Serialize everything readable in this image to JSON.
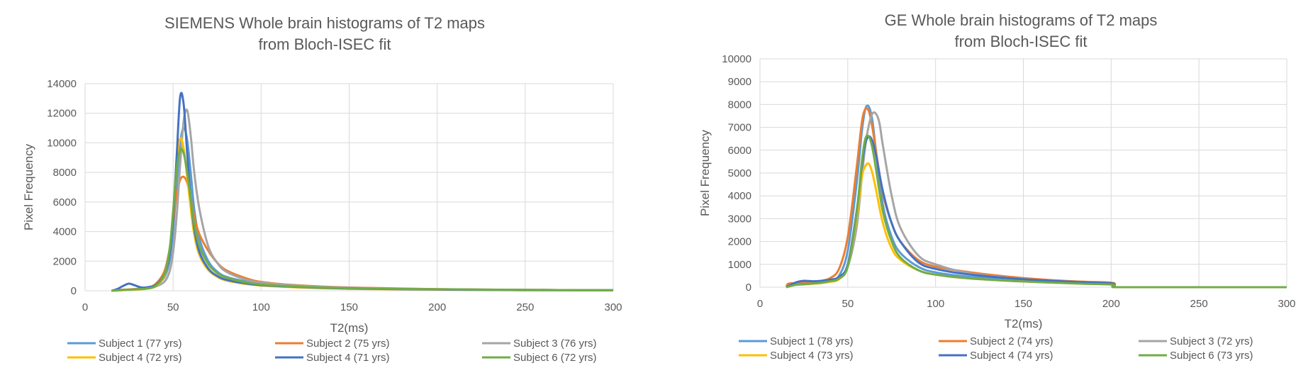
{
  "chart_data": [
    {
      "type": "line",
      "title": [
        "SIEMENS  Whole brain histograms of T2 maps",
        "from Bloch-ISEC  fit"
      ],
      "xlabel": "T2(ms)",
      "ylabel": "Pixel Frequency",
      "xlim": [
        0,
        300
      ],
      "ylim": [
        0,
        14000
      ],
      "xticks": [
        0,
        50,
        100,
        150,
        200,
        250,
        300
      ],
      "yticks": [
        0,
        2000,
        4000,
        6000,
        8000,
        10000,
        12000,
        14000
      ],
      "grid": true,
      "legend_position": "bottom",
      "series": [
        {
          "name": "Subject 1 (77 yrs)",
          "color": "#5B9BD5",
          "x": [
            15,
            20,
            25,
            30,
            35,
            40,
            45,
            48,
            50,
            52,
            54,
            56,
            58,
            60,
            62,
            65,
            70,
            75,
            80,
            90,
            100,
            120,
            150,
            200,
            250,
            300
          ],
          "y": [
            0,
            50,
            80,
            120,
            180,
            350,
            900,
            2000,
            4000,
            7200,
            10000,
            11000,
            10200,
            8000,
            5500,
            3500,
            2000,
            1300,
            950,
            650,
            450,
            300,
            180,
            90,
            50,
            30
          ]
        },
        {
          "name": "Subject 2 (75 yrs)",
          "color": "#ED7D31",
          "x": [
            15,
            20,
            25,
            30,
            35,
            40,
            45,
            48,
            50,
            52,
            54,
            56,
            58,
            60,
            62,
            65,
            70,
            75,
            80,
            90,
            100,
            120,
            150,
            200,
            250,
            300
          ],
          "y": [
            0,
            60,
            90,
            130,
            200,
            450,
            1300,
            2800,
            4700,
            6500,
            7500,
            7700,
            7300,
            6300,
            5000,
            3800,
            2700,
            1900,
            1400,
            900,
            600,
            380,
            220,
            110,
            60,
            40
          ]
        },
        {
          "name": "Subject 3 (76 yrs)",
          "color": "#A5A5A5",
          "x": [
            15,
            20,
            25,
            30,
            35,
            40,
            45,
            48,
            50,
            52,
            54,
            56,
            58,
            60,
            62,
            65,
            70,
            75,
            80,
            90,
            100,
            120,
            150,
            200,
            250,
            300
          ],
          "y": [
            0,
            40,
            70,
            100,
            150,
            280,
            600,
            1300,
            2600,
            5000,
            8500,
            11500,
            12200,
            10500,
            8000,
            5500,
            3000,
            1900,
            1300,
            800,
            550,
            350,
            200,
            100,
            60,
            40
          ]
        },
        {
          "name": "Subject 4 (72 yrs)",
          "color": "#FFC000",
          "x": [
            15,
            20,
            25,
            30,
            35,
            40,
            45,
            48,
            50,
            52,
            54,
            56,
            58,
            60,
            62,
            65,
            70,
            75,
            80,
            90,
            100,
            120,
            150,
            200,
            250,
            300
          ],
          "y": [
            0,
            30,
            60,
            90,
            140,
            300,
            1000,
            2600,
            5200,
            8700,
            10300,
            9600,
            7700,
            5600,
            3800,
            2400,
            1400,
            950,
            700,
            480,
            350,
            230,
            130,
            70,
            40,
            25
          ]
        },
        {
          "name": "Subject 4 (71 yrs)",
          "color": "#4472C4",
          "x": [
            15,
            18,
            22,
            25,
            28,
            32,
            36,
            40,
            45,
            48,
            50,
            52,
            54,
            56,
            58,
            60,
            62,
            65,
            70,
            75,
            80,
            90,
            100,
            120,
            150,
            200,
            250,
            300
          ],
          "y": [
            0,
            100,
            350,
            480,
            380,
            220,
            250,
            380,
            1100,
            2500,
            5000,
            9000,
            13100,
            12600,
            9300,
            6300,
            4200,
            2600,
            1500,
            1000,
            750,
            520,
            380,
            260,
            150,
            80,
            45,
            30
          ]
        },
        {
          "name": "Subject 6 (72 yrs)",
          "color": "#70AD47",
          "x": [
            15,
            20,
            25,
            30,
            35,
            40,
            45,
            48,
            50,
            52,
            54,
            56,
            58,
            60,
            62,
            65,
            70,
            75,
            80,
            90,
            100,
            120,
            150,
            200,
            250,
            300
          ],
          "y": [
            0,
            40,
            70,
            100,
            150,
            320,
            1100,
            2800,
            5400,
            8200,
            9500,
            9300,
            8000,
            6200,
            4500,
            3000,
            1800,
            1200,
            900,
            600,
            420,
            280,
            170,
            100,
            60,
            40
          ]
        }
      ]
    },
    {
      "type": "line",
      "title": [
        "GE Whole brain histograms of T2 maps",
        "from Bloch-ISEC  fit"
      ],
      "xlabel": "T2(ms)",
      "ylabel": "Pixel Frequency",
      "xlim": [
        0,
        300
      ],
      "ylim": [
        0,
        10000
      ],
      "xticks": [
        0,
        50,
        100,
        150,
        200,
        250,
        300
      ],
      "yticks": [
        0,
        1000,
        2000,
        3000,
        4000,
        5000,
        6000,
        7000,
        8000,
        9000,
        10000
      ],
      "grid": true,
      "legend_position": "bottom",
      "series": [
        {
          "name": "Subject 1 (78 yrs)",
          "color": "#5B9BD5",
          "x": [
            15,
            20,
            25,
            30,
            35,
            40,
            45,
            50,
            55,
            58,
            60,
            62,
            64,
            66,
            70,
            75,
            80,
            90,
            100,
            120,
            150,
            180,
            200,
            202,
            205,
            250,
            300
          ],
          "y": [
            0,
            150,
            200,
            200,
            250,
            300,
            500,
            1600,
            4500,
            6800,
            7800,
            7900,
            7300,
            6000,
            3600,
            2200,
            1500,
            900,
            650,
            450,
            300,
            200,
            150,
            50,
            0,
            0,
            0
          ]
        },
        {
          "name": "Subject 2 (74 yrs)",
          "color": "#ED7D31",
          "x": [
            15,
            16,
            20,
            25,
            30,
            35,
            40,
            45,
            50,
            55,
            58,
            60,
            62,
            64,
            66,
            70,
            75,
            80,
            90,
            100,
            120,
            150,
            180,
            200,
            202,
            205,
            250,
            300
          ],
          "y": [
            0,
            150,
            180,
            200,
            220,
            280,
            400,
            800,
            2200,
            5200,
            7200,
            7800,
            7700,
            7000,
            6000,
            4100,
            2800,
            2000,
            1200,
            900,
            650,
            400,
            250,
            200,
            80,
            0,
            0,
            0
          ]
        },
        {
          "name": "Subject 3 (72 yrs)",
          "color": "#A5A5A5",
          "x": [
            15,
            20,
            25,
            30,
            35,
            40,
            45,
            50,
            55,
            58,
            60,
            62,
            64,
            66,
            68,
            70,
            75,
            80,
            90,
            100,
            120,
            150,
            180,
            200,
            202,
            205,
            250,
            300
          ],
          "y": [
            0,
            100,
            130,
            160,
            200,
            260,
            400,
            900,
            2600,
            4800,
            6200,
            7100,
            7600,
            7600,
            7200,
            6200,
            4000,
            2600,
            1400,
            1000,
            600,
            350,
            220,
            150,
            50,
            0,
            0,
            0
          ]
        },
        {
          "name": "Subject 4 (73 yrs)",
          "color": "#FFC000",
          "x": [
            15,
            20,
            25,
            30,
            35,
            40,
            45,
            50,
            55,
            58,
            60,
            62,
            64,
            66,
            70,
            75,
            80,
            90,
            100,
            120,
            150,
            180,
            200,
            202,
            205,
            250,
            300
          ],
          "y": [
            0,
            100,
            120,
            150,
            180,
            240,
            350,
            900,
            3000,
            4800,
            5300,
            5400,
            5000,
            4300,
            2800,
            1700,
            1200,
            750,
            550,
            380,
            250,
            160,
            120,
            40,
            0,
            0,
            0
          ]
        },
        {
          "name": "Subject 4 (74 yrs)",
          "color": "#4472C4",
          "x": [
            15,
            20,
            25,
            30,
            35,
            40,
            45,
            50,
            55,
            58,
            60,
            62,
            64,
            66,
            70,
            75,
            80,
            90,
            100,
            120,
            150,
            180,
            200,
            202,
            205,
            250,
            300
          ],
          "y": [
            0,
            200,
            280,
            260,
            280,
            330,
            450,
            1000,
            3300,
            5300,
            6300,
            6600,
            6400,
            5800,
            4200,
            2800,
            2000,
            1100,
            800,
            550,
            350,
            230,
            170,
            60,
            0,
            0,
            0
          ]
        },
        {
          "name": "Subject 6 (73 yrs)",
          "color": "#70AD47",
          "x": [
            15,
            20,
            25,
            30,
            35,
            40,
            45,
            50,
            55,
            58,
            60,
            62,
            64,
            66,
            70,
            75,
            80,
            90,
            100,
            120,
            150,
            180,
            200,
            202,
            205,
            250,
            300
          ],
          "y": [
            0,
            100,
            130,
            160,
            200,
            260,
            380,
            900,
            3200,
            5500,
            6500,
            6600,
            6100,
            5200,
            3300,
            2000,
            1300,
            750,
            550,
            380,
            250,
            160,
            120,
            40,
            0,
            0,
            0
          ]
        }
      ]
    }
  ]
}
